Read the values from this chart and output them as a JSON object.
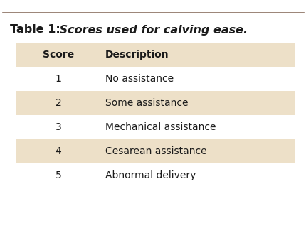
{
  "title_bold": "Table 1:",
  "title_italic": " Scores used for calving ease.",
  "col_headers": [
    "Score",
    "Description"
  ],
  "scores": [
    "1",
    "2",
    "3",
    "4",
    "5"
  ],
  "descriptions": [
    "No assistance",
    "Some assistance",
    "Mechanical assistance",
    "Cesarean assistance",
    "Abnormal delivery"
  ],
  "bg_color": "#ffffff",
  "shaded_color": "#ede0c8",
  "top_line_color": "#8a7060",
  "text_color": "#1a1a1a",
  "title_bold_part": "Table 1:",
  "title_italic_part": " Scores used for calving ease.",
  "row_shaded": [
    true,
    false,
    true,
    false,
    true,
    false
  ],
  "figwidth": 4.31,
  "figheight": 3.21,
  "dpi": 100
}
